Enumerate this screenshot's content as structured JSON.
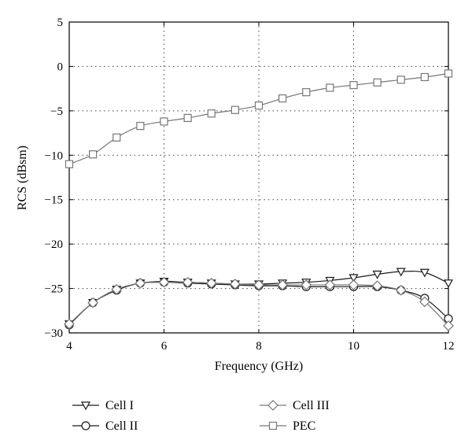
{
  "chart_data": {
    "type": "line",
    "xlabel": "Frequency (GHz)",
    "ylabel": "RCS (dBsm)",
    "xlim": [
      4,
      12
    ],
    "ylim": [
      -30,
      5
    ],
    "xticks": [
      4,
      6,
      8,
      10,
      12
    ],
    "yticks": [
      5,
      0,
      -5,
      -10,
      -15,
      -20,
      -25,
      -30
    ],
    "grid": true,
    "legend_position": "bottom",
    "series": [
      {
        "name": "Cell I",
        "marker": "triangle-down",
        "color": "#1a1a1a",
        "x": [
          4,
          4.5,
          5,
          5.5,
          6,
          6.5,
          7,
          7.5,
          8,
          8.5,
          9,
          9.5,
          10,
          10.5,
          11,
          11.5,
          12
        ],
        "y": [
          -29.0,
          -26.6,
          -25.1,
          -24.4,
          -24.2,
          -24.3,
          -24.4,
          -24.5,
          -24.5,
          -24.4,
          -24.3,
          -24.1,
          -23.8,
          -23.4,
          -23.1,
          -23.2,
          -24.4
        ]
      },
      {
        "name": "Cell II",
        "marker": "circle",
        "color": "#1a1a1a",
        "x": [
          4,
          4.5,
          5,
          5.5,
          6,
          6.5,
          7,
          7.5,
          8,
          8.5,
          9,
          9.5,
          10,
          10.5,
          11,
          11.5,
          12
        ],
        "y": [
          -29.1,
          -26.6,
          -25.2,
          -24.4,
          -24.3,
          -24.4,
          -24.5,
          -24.6,
          -24.7,
          -24.7,
          -24.8,
          -24.8,
          -24.8,
          -24.8,
          -25.2,
          -26.1,
          -28.4
        ]
      },
      {
        "name": "Cell III",
        "marker": "diamond",
        "color": "#777777",
        "x": [
          4,
          4.5,
          5,
          5.5,
          6,
          6.5,
          7,
          7.5,
          8,
          8.5,
          9,
          9.5,
          10,
          10.5,
          11,
          11.5,
          12
        ],
        "y": [
          -29.0,
          -26.6,
          -25.1,
          -24.4,
          -24.3,
          -24.3,
          -24.4,
          -24.5,
          -24.6,
          -24.6,
          -24.6,
          -24.6,
          -24.6,
          -24.7,
          -25.2,
          -26.5,
          -29.2
        ]
      },
      {
        "name": "PEC",
        "marker": "square",
        "color": "#777777",
        "x": [
          4,
          4.5,
          5,
          5.5,
          6,
          6.5,
          7,
          7.5,
          8,
          8.5,
          9,
          9.5,
          10,
          10.5,
          11,
          11.5,
          12
        ],
        "y": [
          -11.0,
          -9.9,
          -8.0,
          -6.7,
          -6.2,
          -5.8,
          -5.3,
          -4.9,
          -4.4,
          -3.6,
          -2.9,
          -2.4,
          -2.1,
          -1.8,
          -1.5,
          -1.2,
          -0.8
        ]
      }
    ]
  }
}
